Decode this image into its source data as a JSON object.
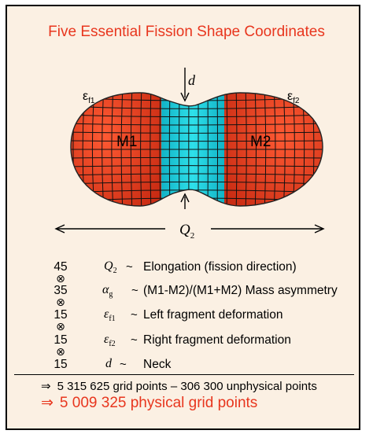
{
  "title": "Five Essential Fission Shape Coordinates",
  "figure": {
    "label_m1": "M1",
    "label_m2": "M2",
    "label_d": "d",
    "label_q2_main": "Q",
    "label_q2_sub": "2",
    "label_ef1_main": "ε",
    "label_ef1_sub": "f1",
    "label_ef2_main": "ε",
    "label_ef2_sub": "f2",
    "colors": {
      "fragment": "#e23a1e",
      "neck": "#19c8d8",
      "grid": "#111111"
    }
  },
  "coordinates": [
    {
      "count": "45",
      "symbol_main": "Q",
      "symbol_sub": "2",
      "tilde": "~",
      "description": "Elongation (fission direction)"
    },
    {
      "count": "35",
      "symbol_main": "α",
      "symbol_sub": "g",
      "tilde": "~",
      "description": "(M1-M2)/(M1+M2) Mass asymmetry"
    },
    {
      "count": "15",
      "symbol_main": "ε",
      "symbol_sub": "f1",
      "tilde": "~",
      "description": "Left fragment deformation"
    },
    {
      "count": "15",
      "symbol_main": "ε",
      "symbol_sub": "f2",
      "tilde": "~",
      "description": "Right fragment deformation"
    },
    {
      "count": "15",
      "symbol_main": "d",
      "symbol_sub": "",
      "tilde": "~",
      "description": "Neck"
    }
  ],
  "product_symbol": "⊗",
  "summary": {
    "arrow": "⇒",
    "grid_points": "5 315 625 grid points – 306 300 unphysical points",
    "physical_points": "5 009 325 physical grid points"
  }
}
